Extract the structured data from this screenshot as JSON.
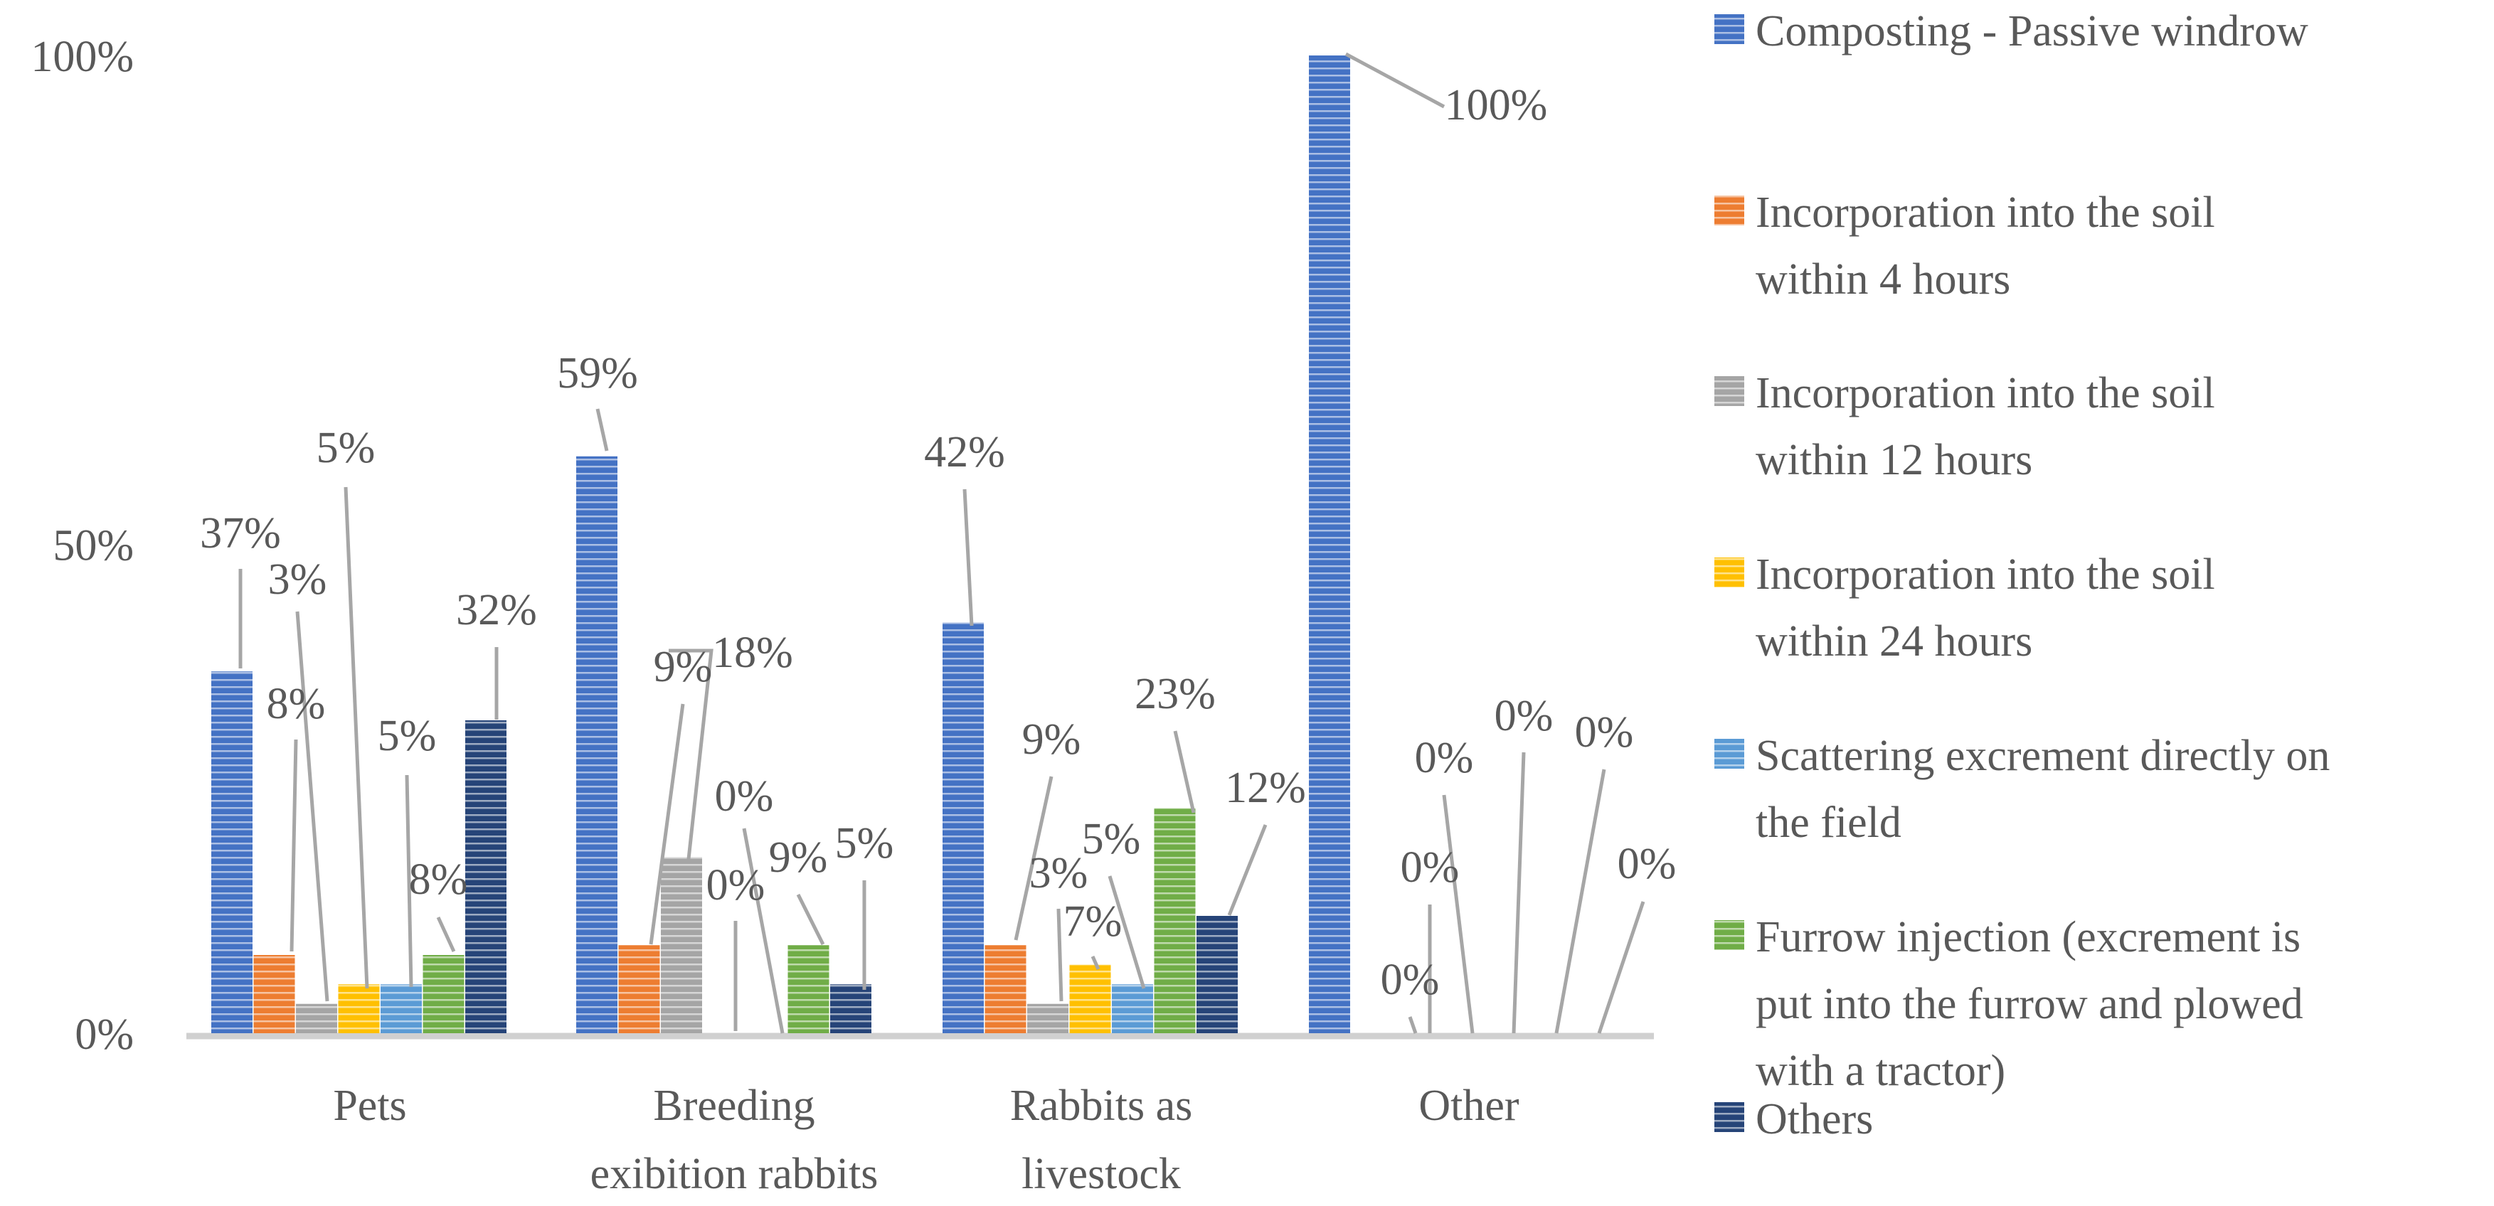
{
  "chart_data": {
    "type": "bar",
    "title": "",
    "xlabel": "",
    "ylabel": "",
    "ylim": [
      0,
      100
    ],
    "y_ticks": [
      "0%",
      "50%",
      "100%"
    ],
    "grid": false,
    "legend_position": "right",
    "categories": [
      [
        "Pets"
      ],
      [
        "Breeding",
        "exibition rabbits"
      ],
      [
        "Rabbits as",
        "livestock"
      ],
      [
        "Other"
      ]
    ],
    "series": [
      {
        "name": "Composting - Passive windrow",
        "legend_lines": [
          "Composting - Passive windrow"
        ],
        "color": "#4472C4",
        "values": [
          37,
          59,
          42,
          100
        ],
        "labels": [
          "37%",
          "59%",
          "42%",
          "100%"
        ]
      },
      {
        "name": "Incorporation into the soil within 4 hours",
        "legend_lines": [
          "Incorporation into the soil",
          "within 4 hours"
        ],
        "color": "#ED7D31",
        "values": [
          8,
          9,
          9,
          0
        ],
        "labels": [
          "8%",
          "9%",
          "9%",
          "0%"
        ]
      },
      {
        "name": "Incorporation into the soil within 12 hours",
        "legend_lines": [
          "Incorporation into the soil",
          "within 12 hours"
        ],
        "color": "#A5A5A5",
        "values": [
          3,
          18,
          3,
          0
        ],
        "labels": [
          "3%",
          "18%",
          "3%",
          "0%"
        ]
      },
      {
        "name": "Incorporation into the soil within 24 hours",
        "legend_lines": [
          "Incorporation into the soil",
          "within 24 hours"
        ],
        "color": "#FFC000",
        "values": [
          5,
          0,
          7,
          0
        ],
        "labels": [
          "5%",
          "0%",
          "7%",
          "0%"
        ]
      },
      {
        "name": "Scattering excrement directly on the field",
        "legend_lines": [
          "Scattering excrement directly on",
          "the field"
        ],
        "color": "#5B9BD5",
        "values": [
          5,
          0,
          5,
          0
        ],
        "labels": [
          "5%",
          "0%",
          "5%",
          "0%"
        ]
      },
      {
        "name": "Furrow injection (excrement is put into the furrow and plowed with a tractor)",
        "legend_lines": [
          "Furrow injection (excrement is",
          "put into the furrow and plowed",
          "with a tractor)"
        ],
        "color": "#70AD47",
        "values": [
          8,
          9,
          23,
          0
        ],
        "labels": [
          "8%",
          "9%",
          "23%",
          "0%"
        ]
      },
      {
        "name": "Others",
        "legend_lines": [
          "Others"
        ],
        "color": "#264478",
        "values": [
          32,
          5,
          12,
          0
        ],
        "labels": [
          "32%",
          "5%",
          "12%",
          "0%"
        ]
      }
    ]
  }
}
